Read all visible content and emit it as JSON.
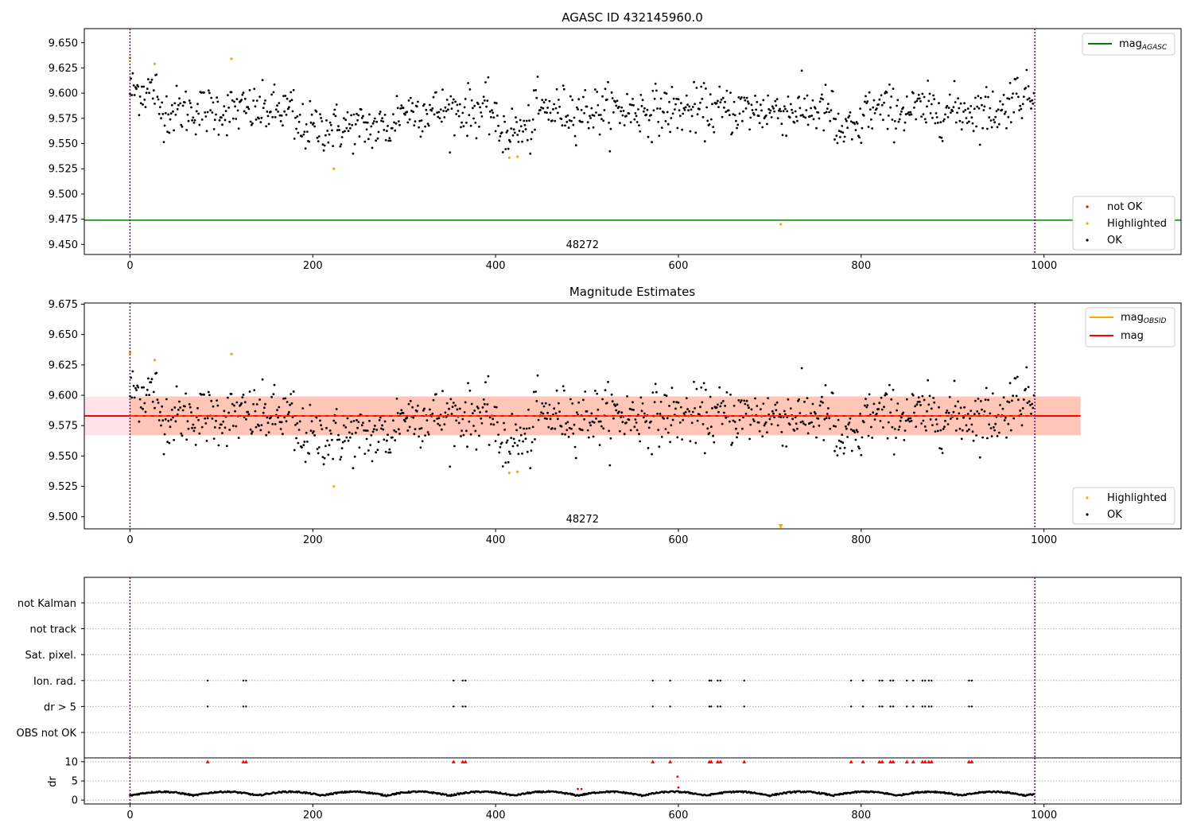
{
  "chart_data": [
    {
      "type": "scatter",
      "title": "AGASC ID 432145960.0",
      "xlim": [
        -50,
        1150
      ],
      "ylim": [
        9.44,
        9.664
      ],
      "xticks": [
        0,
        200,
        400,
        600,
        800,
        1000
      ],
      "yticks": [
        "9.450",
        "9.475",
        "9.500",
        "9.525",
        "9.550",
        "9.575",
        "9.600",
        "9.625",
        "9.650"
      ],
      "obsid_label": "48272",
      "obsid_label_x": 495,
      "obsid_boundaries_x": [
        0,
        990
      ],
      "agasc_mag": 9.474,
      "agasc_line_x": [
        -50,
        1150
      ],
      "ok_points": {
        "count": 990,
        "mean": 9.583,
        "scatter": 0.016,
        "min": 9.54,
        "max": 9.623,
        "dip_regions": [
          {
            "x_range": [
              180,
              290
            ],
            "center": 9.566
          },
          {
            "x_range": [
              400,
              440
            ],
            "center": 9.563
          },
          {
            "x_range": [
              770,
              800
            ],
            "center": 9.562
          }
        ]
      },
      "highlighted_points": [
        {
          "x": 0,
          "y": 9.635
        },
        {
          "x": 27,
          "y": 9.629
        },
        {
          "x": 111,
          "y": 9.634
        },
        {
          "x": 223,
          "y": 9.525
        },
        {
          "x": 415,
          "y": 9.536
        },
        {
          "x": 424,
          "y": 9.537
        },
        {
          "x": 712,
          "y": 9.47
        }
      ],
      "legend_top": {
        "position": "top-right",
        "entries": [
          {
            "label": "mag",
            "subscript": "AGASC",
            "color": "#008000"
          }
        ]
      },
      "legend_bottom": {
        "position": "lower-right",
        "entries": [
          {
            "label": "not OK",
            "color": "#ff0000"
          },
          {
            "label": "Highlighted",
            "color": "#ffa500"
          },
          {
            "label": "OK",
            "color": "#000000"
          }
        ]
      }
    },
    {
      "type": "scatter",
      "title": "Magnitude Estimates",
      "xlim": [
        -50,
        1150
      ],
      "ylim": [
        9.49,
        9.676
      ],
      "xticks": [
        0,
        200,
        400,
        600,
        800,
        1000
      ],
      "yticks": [
        "9.500",
        "9.525",
        "9.550",
        "9.575",
        "9.600",
        "9.625",
        "9.650",
        "9.675"
      ],
      "obsid_label": "48272",
      "obsid_label_x": 495,
      "obsid_boundaries_x": [
        0,
        990
      ],
      "mag": 9.583,
      "mag_band": [
        9.567,
        9.599
      ],
      "mag_obsid": 9.583,
      "band_x": [
        -50,
        1040
      ],
      "highlighted_points": [
        {
          "x": 0,
          "y": 9.635
        },
        {
          "x": 27,
          "y": 9.629
        },
        {
          "x": 111,
          "y": 9.634
        },
        {
          "x": 223,
          "y": 9.525
        },
        {
          "x": 415,
          "y": 9.536
        },
        {
          "x": 424,
          "y": 9.537
        }
      ],
      "offscale_marker": {
        "x": 712,
        "y": 9.492
      },
      "legend_top": {
        "position": "top-right",
        "entries": [
          {
            "label": "mag",
            "subscript": "OBSID",
            "color": "#ffa500"
          },
          {
            "label": "mag",
            "color": "#ff0000"
          }
        ]
      },
      "legend_bottom": {
        "position": "lower-right",
        "entries": [
          {
            "label": "Highlighted",
            "color": "#ffa500"
          },
          {
            "label": "OK",
            "color": "#000000"
          }
        ]
      }
    },
    {
      "type": "scatter",
      "title": "",
      "xlim": [
        -50,
        1150
      ],
      "flag_rows": [
        "not Kalman",
        "not track",
        "Sat. pixel.",
        "Ion. rad.",
        "dr > 5",
        "OBS not OK"
      ],
      "flag_x": [
        85,
        124,
        127,
        354,
        364,
        367,
        572,
        591,
        634,
        636,
        643,
        646,
        672,
        789,
        802,
        820,
        823,
        832,
        835,
        850,
        857,
        867,
        870,
        874,
        877,
        918,
        921
      ],
      "flag_rows_with_points": [
        "Ion. rad.",
        "dr > 5"
      ],
      "obsid_boundaries_x": [
        0,
        990
      ]
    },
    {
      "type": "scatter",
      "title": "",
      "ylabel": "dr",
      "xlim": [
        -50,
        1150
      ],
      "ylim": [
        -1,
        11
      ],
      "xticks": [
        0,
        200,
        400,
        600,
        800,
        1000
      ],
      "yticks": [
        "0",
        "5",
        "10"
      ],
      "dr_capped_value": 10,
      "dr_capped_x": [
        85,
        124,
        127,
        354,
        364,
        367,
        572,
        591,
        634,
        636,
        643,
        646,
        672,
        789,
        802,
        820,
        823,
        832,
        835,
        850,
        857,
        867,
        870,
        874,
        877,
        918,
        921
      ],
      "dr_extra_red_points": [
        {
          "x": 599,
          "y": 6.1
        },
        {
          "x": 600,
          "y": 3.3
        },
        {
          "x": 490,
          "y": 2.9
        },
        {
          "x": 494,
          "y": 2.9
        }
      ],
      "dr_profile": {
        "mean": 1.2,
        "amplitude": 1.1,
        "period_points": 70
      },
      "obsid_boundaries_x": [
        0,
        990
      ]
    }
  ]
}
